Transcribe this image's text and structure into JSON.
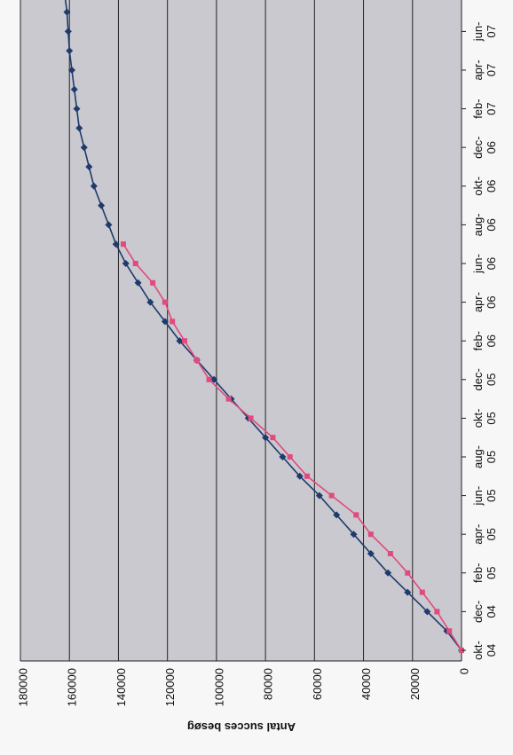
{
  "colors": {
    "plot_background": "#c9c9cf",
    "grid": "#222222",
    "series_blue": "#1f3a6b",
    "series_pink": "#e14a7c"
  },
  "chart_data": {
    "type": "line",
    "orientation": "rotated 90 degrees clockwise: time runs top-to-bottom, value axis runs right-to-left",
    "ylabel": "Antal succes besøg",
    "ylim": [
      0,
      180000
    ],
    "y_ticks": [
      0,
      20000,
      40000,
      60000,
      80000,
      100000,
      120000,
      140000,
      160000,
      180000
    ],
    "x_tick_labels": [
      [
        "okt-",
        "04"
      ],
      [
        "dec-",
        "04"
      ],
      [
        "feb-",
        "05"
      ],
      [
        "apr-",
        "05"
      ],
      [
        "jun-",
        "05"
      ],
      [
        "aug-",
        "05"
      ],
      [
        "okt-",
        "05"
      ],
      [
        "dec-",
        "05"
      ],
      [
        "feb-",
        "06"
      ],
      [
        "apr-",
        "06"
      ],
      [
        "jun-",
        "06"
      ],
      [
        "aug-",
        "06"
      ],
      [
        "okt-",
        "06"
      ],
      [
        "dec-",
        "06"
      ],
      [
        "feb-",
        "07"
      ],
      [
        "apr-",
        "07"
      ],
      [
        "jun-",
        "07"
      ]
    ],
    "x_months_start": "2004-10",
    "legend": "none",
    "grid": "major value gridlines",
    "series": [
      {
        "marker": "diamond",
        "color": "#1f3a6b",
        "points": [
          [
            0,
            0
          ],
          [
            1,
            6000
          ],
          [
            2,
            14000
          ],
          [
            3,
            22000
          ],
          [
            4,
            30000
          ],
          [
            5,
            37000
          ],
          [
            6,
            44000
          ],
          [
            7,
            51000
          ],
          [
            8,
            58000
          ],
          [
            9,
            66000
          ],
          [
            10,
            73000
          ],
          [
            11,
            80000
          ],
          [
            12,
            87000
          ],
          [
            13,
            94000
          ],
          [
            14,
            101000
          ],
          [
            15,
            108000
          ],
          [
            16,
            115000
          ],
          [
            17,
            121000
          ],
          [
            18,
            127000
          ],
          [
            19,
            132000
          ],
          [
            20,
            137000
          ],
          [
            21,
            141000
          ],
          [
            22,
            144000
          ],
          [
            23,
            147000
          ],
          [
            24,
            150000
          ],
          [
            25,
            152000
          ],
          [
            26,
            154000
          ],
          [
            27,
            156000
          ],
          [
            28,
            157000
          ],
          [
            29,
            158000
          ],
          [
            30,
            159000
          ],
          [
            31,
            160000
          ],
          [
            32,
            160500
          ],
          [
            33,
            161000
          ],
          [
            34,
            162000
          ]
        ]
      },
      {
        "marker": "square",
        "color": "#e14a7c",
        "points": [
          [
            0,
            0
          ],
          [
            1,
            5000
          ],
          [
            2,
            10000
          ],
          [
            3,
            16000
          ],
          [
            4,
            22000
          ],
          [
            5,
            29000
          ],
          [
            6,
            37000
          ],
          [
            7,
            43000
          ],
          [
            8,
            53000
          ],
          [
            9,
            63000
          ],
          [
            10,
            70000
          ],
          [
            11,
            77000
          ],
          [
            12,
            86000
          ],
          [
            13,
            95000
          ],
          [
            14,
            103000
          ],
          [
            15,
            108000
          ],
          [
            16,
            113000
          ],
          [
            17,
            118000
          ],
          [
            18,
            121000
          ],
          [
            19,
            126000
          ],
          [
            20,
            133000
          ],
          [
            21,
            138000
          ]
        ]
      }
    ]
  }
}
